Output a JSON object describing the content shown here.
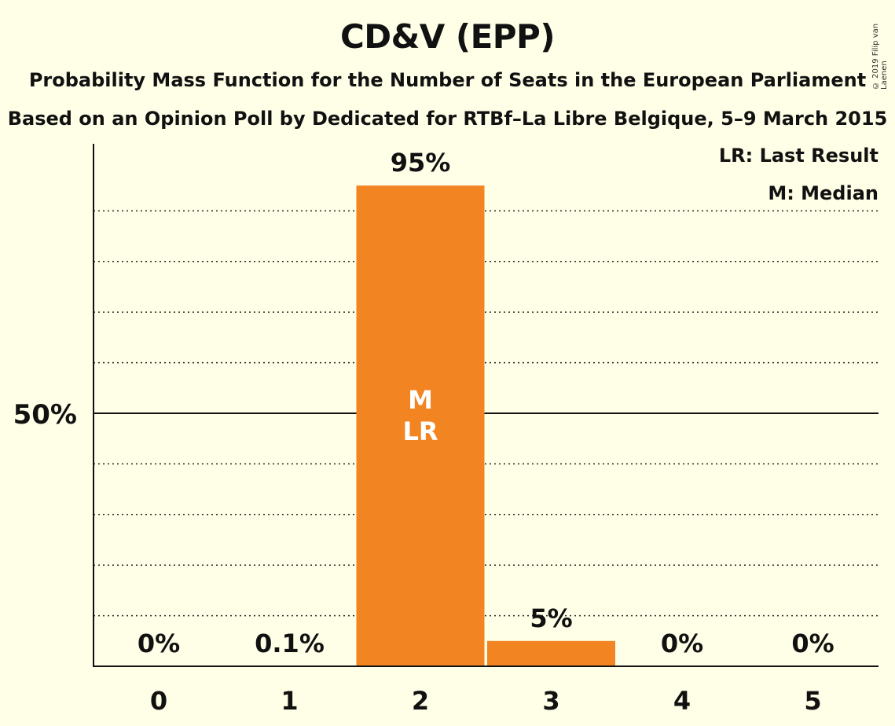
{
  "chart_data": {
    "type": "bar",
    "title": "CD&V (EPP)",
    "subtitle": "Probability Mass Function for the Number of Seats in the European Parliament",
    "subtitle2": "Based on an Opinion Poll by Dedicated for RTBf–La Libre Belgique, 5–9 March 2015",
    "categories": [
      "0",
      "1",
      "2",
      "3",
      "4",
      "5"
    ],
    "values": [
      0,
      0.1,
      95,
      5,
      0,
      0
    ],
    "value_labels": [
      "0%",
      "0.1%",
      "95%",
      "5%",
      "0%",
      "0%"
    ],
    "ylim": [
      0,
      100
    ],
    "ytick_label": "50%",
    "ytick_value": 50,
    "gridlines": [
      10,
      20,
      30,
      40,
      60,
      70,
      80,
      90
    ],
    "bar_inner_labels": {
      "category": "2",
      "lines": [
        "M",
        "LR"
      ]
    },
    "legend": [
      "LR: Last Result",
      "M: Median"
    ],
    "legend_position": "top-right",
    "copyright": "© 2019 Filip van Laenen",
    "colors": {
      "bar": "#F28421",
      "background": "#FFFEE6"
    }
  }
}
